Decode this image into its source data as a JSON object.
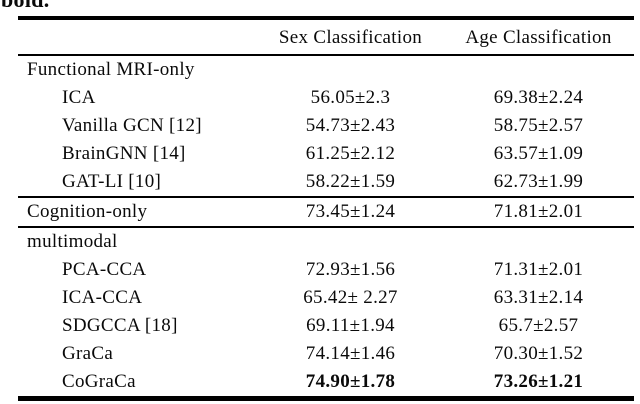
{
  "caption": {
    "fragment": "bold."
  },
  "colors": {
    "background": "#ffffff",
    "text": "#0a0a0a",
    "rule": "#000000"
  },
  "table": {
    "columns": [
      "",
      "Sex Classification",
      "Age Classification"
    ],
    "sections": [
      {
        "header": {
          "label": "Functional MRI-only",
          "sex": "",
          "age": "",
          "bold": false
        },
        "rows": [
          {
            "label": "ICA",
            "sex": "56.05±2.3",
            "age": "69.38±2.24",
            "bold": false
          },
          {
            "label": "Vanilla GCN [12]",
            "sex": "54.73±2.43",
            "age": "58.75±2.57",
            "bold": false
          },
          {
            "label": "BrainGNN [14]",
            "sex": "61.25±2.12",
            "age": "63.57±1.09",
            "bold": false
          },
          {
            "label": "GAT-LI [10]",
            "sex": "58.22±1.59",
            "age": "62.73±1.99",
            "bold": false
          }
        ]
      },
      {
        "header": {
          "label": "Cognition-only",
          "sex": "73.45±1.24",
          "age": "71.81±2.01",
          "bold": false
        },
        "rows": []
      },
      {
        "header": {
          "label": "multimodal",
          "sex": "",
          "age": "",
          "bold": false
        },
        "rows": [
          {
            "label": "PCA-CCA",
            "sex": "72.93±1.56",
            "age": "71.31±2.01",
            "bold": false
          },
          {
            "label": "ICA-CCA",
            "sex": "65.42± 2.27",
            "age": "63.31±2.14",
            "bold": false
          },
          {
            "label": "SDGCCA [18]",
            "sex": "69.11±1.94",
            "age": "65.7±2.57",
            "bold": false
          },
          {
            "label": "GraCa",
            "sex": "74.14±1.46",
            "age": "70.30±1.52",
            "bold": false
          },
          {
            "label": "CoGraCa",
            "sex": "74.90±1.78",
            "age": "73.26±1.21",
            "bold": true
          }
        ]
      }
    ]
  }
}
